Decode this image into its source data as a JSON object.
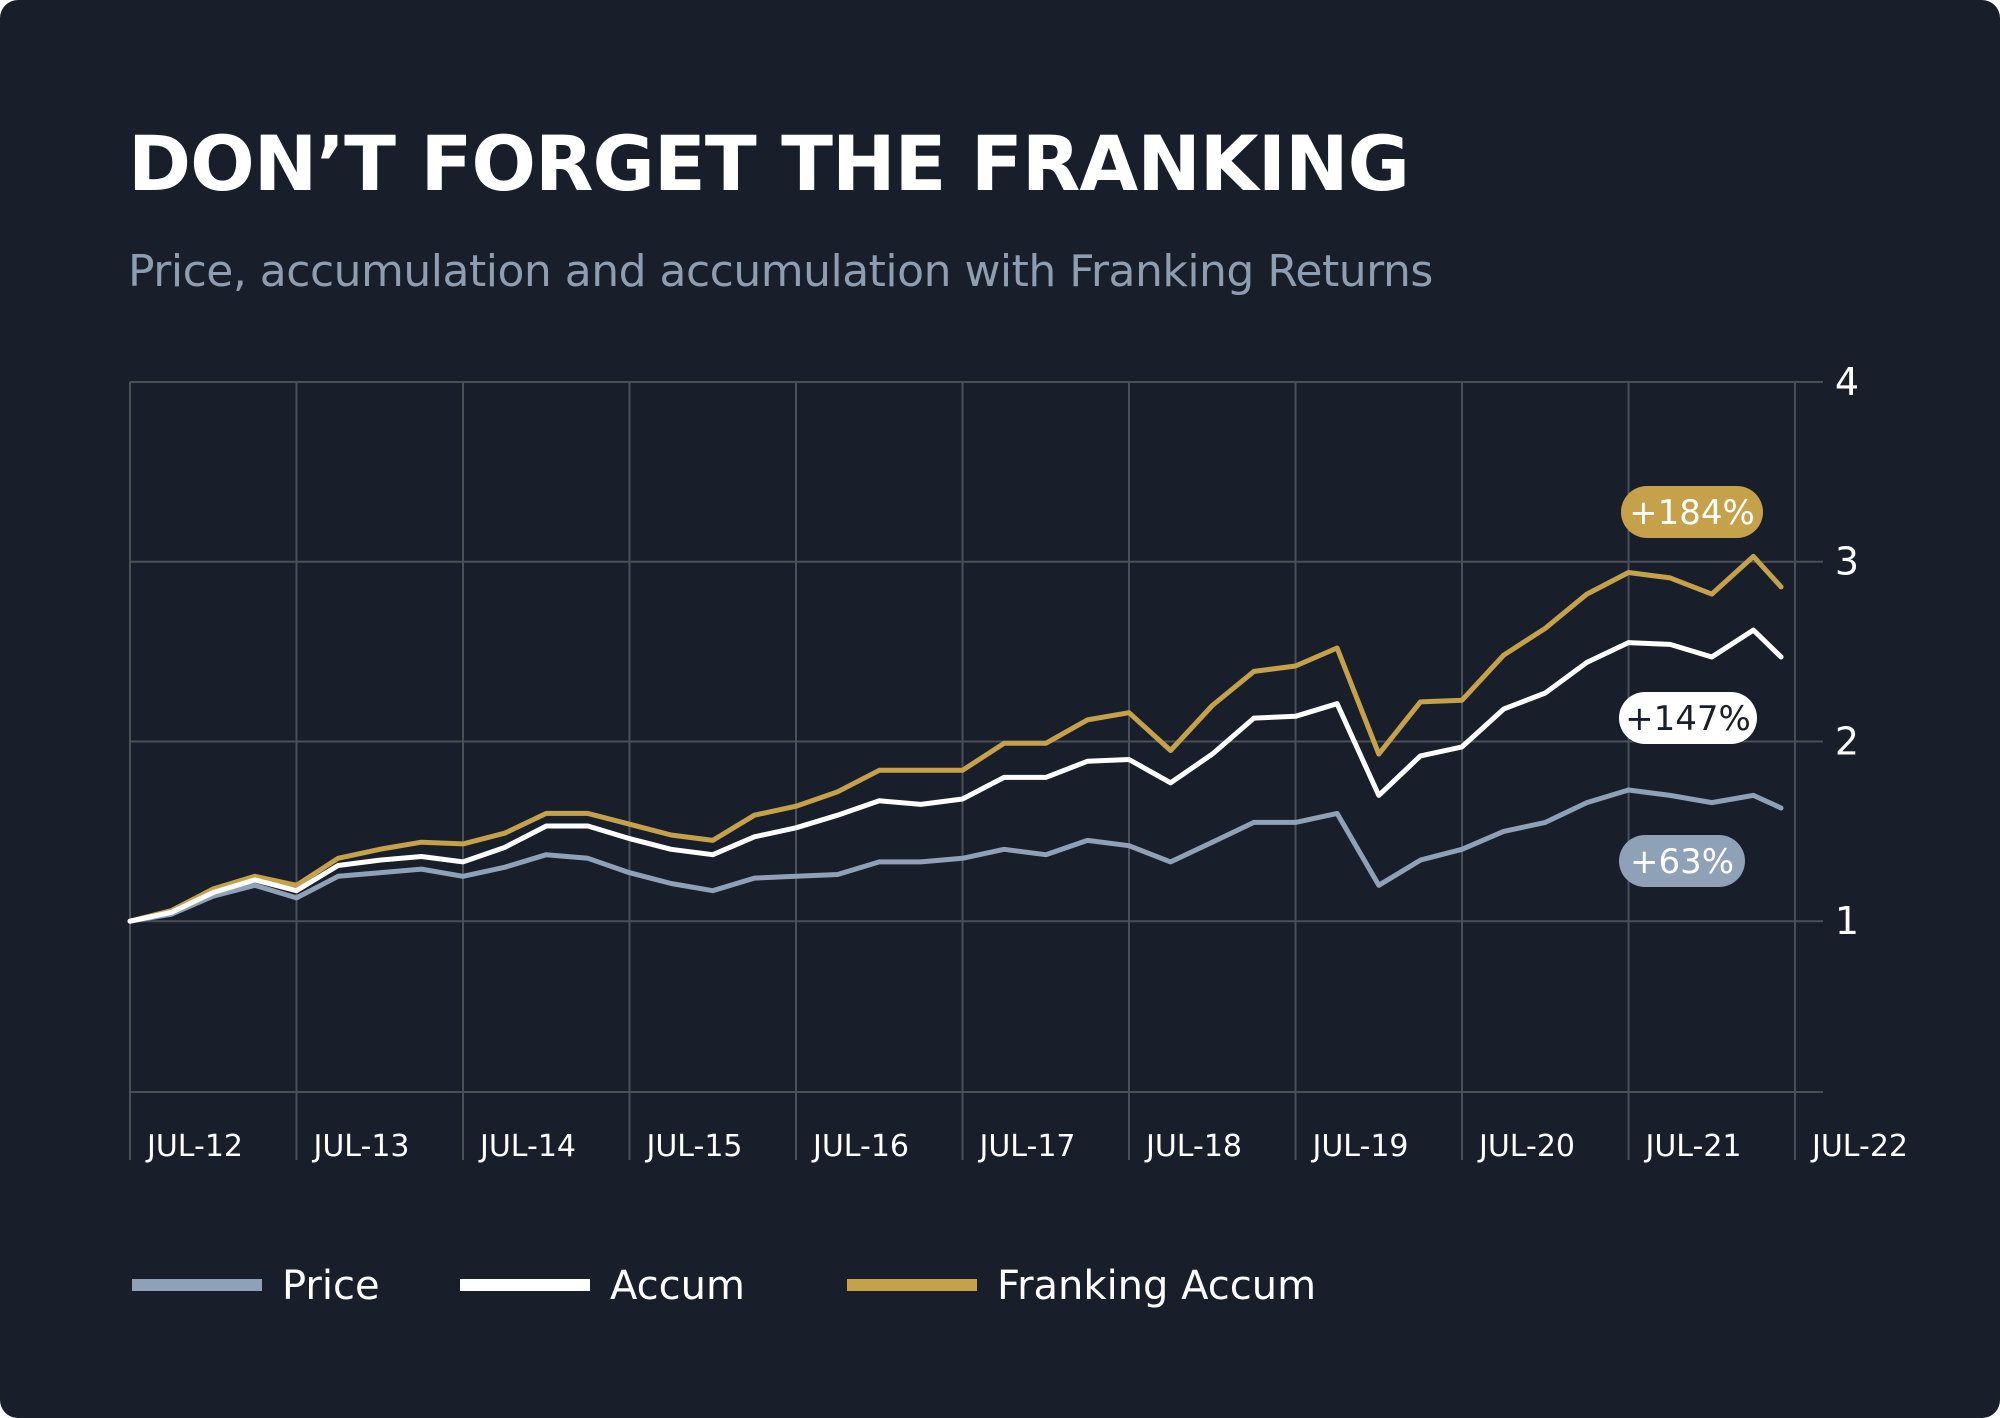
{
  "title": "DON’T FORGET THE FRANKING",
  "subtitle": "Price, accumulation and accumulation with Franking Returns",
  "colors": {
    "background": "#181f2b",
    "grid": "#4a4f58",
    "price": "#8fa1b6",
    "accum": "#ffffff",
    "franking": "#c5a14a"
  },
  "legend": [
    {
      "label": "Price",
      "color": "#8fa1b6"
    },
    {
      "label": "Accum",
      "color": "#ffffff"
    },
    {
      "label": "Franking Accum",
      "color": "#c5a14a"
    }
  ],
  "chart_data": {
    "type": "line",
    "title": "DON’T FORGET THE FRANKING",
    "subtitle": "Price, accumulation and accumulation with Franking Returns",
    "xlabel": "",
    "ylabel": "",
    "x_ticks": [
      "JUL-12",
      "JUL-13",
      "JUL-14",
      "JUL-15",
      "JUL-16",
      "JUL-17",
      "JUL-18",
      "JUL-19",
      "JUL-20",
      "JUL-21",
      "JUL-22"
    ],
    "y_ticks": [
      1,
      2,
      3,
      4
    ],
    "ylim": [
      0.05,
      4
    ],
    "xlim": [
      "2012-07",
      "2022-07"
    ],
    "y_axis_position": "right",
    "grid": true,
    "legend_position": "bottom",
    "x": [
      "2012-07",
      "2012-10",
      "2013-01",
      "2013-04",
      "2013-07",
      "2013-10",
      "2014-01",
      "2014-04",
      "2014-07",
      "2014-10",
      "2015-01",
      "2015-04",
      "2015-07",
      "2015-10",
      "2016-01",
      "2016-04",
      "2016-07",
      "2016-10",
      "2017-01",
      "2017-04",
      "2017-07",
      "2017-10",
      "2018-01",
      "2018-04",
      "2018-07",
      "2018-10",
      "2019-01",
      "2019-04",
      "2019-07",
      "2019-10",
      "2020-01",
      "2020-04",
      "2020-07",
      "2020-10",
      "2021-01",
      "2021-04",
      "2021-07",
      "2021-10",
      "2022-01",
      "2022-04",
      "2022-06"
    ],
    "series": [
      {
        "name": "Price",
        "color": "#8fa1b6",
        "end_label": "+63%",
        "values": [
          1.0,
          1.04,
          1.14,
          1.2,
          1.13,
          1.25,
          1.27,
          1.29,
          1.25,
          1.3,
          1.37,
          1.35,
          1.27,
          1.21,
          1.17,
          1.24,
          1.25,
          1.26,
          1.33,
          1.33,
          1.35,
          1.4,
          1.37,
          1.45,
          1.42,
          1.33,
          1.44,
          1.55,
          1.55,
          1.6,
          1.2,
          1.34,
          1.4,
          1.5,
          1.55,
          1.66,
          1.73,
          1.7,
          1.66,
          1.7,
          1.63
        ]
      },
      {
        "name": "Accum",
        "color": "#ffffff",
        "end_label": "+147%",
        "values": [
          1.0,
          1.05,
          1.16,
          1.23,
          1.17,
          1.31,
          1.34,
          1.36,
          1.33,
          1.41,
          1.53,
          1.53,
          1.46,
          1.4,
          1.37,
          1.47,
          1.52,
          1.59,
          1.67,
          1.65,
          1.68,
          1.8,
          1.8,
          1.89,
          1.9,
          1.77,
          1.93,
          2.13,
          2.14,
          2.21,
          1.7,
          1.92,
          1.97,
          2.18,
          2.27,
          2.44,
          2.55,
          2.54,
          2.47,
          2.62,
          2.47
        ]
      },
      {
        "name": "Franking Accum",
        "color": "#c5a14a",
        "end_label": "+184%",
        "values": [
          1.0,
          1.06,
          1.18,
          1.25,
          1.2,
          1.35,
          1.4,
          1.44,
          1.43,
          1.49,
          1.6,
          1.6,
          1.54,
          1.48,
          1.45,
          1.59,
          1.64,
          1.72,
          1.84,
          1.84,
          1.84,
          1.99,
          1.99,
          2.12,
          2.16,
          1.95,
          2.2,
          2.39,
          2.42,
          2.52,
          1.93,
          2.22,
          2.23,
          2.48,
          2.63,
          2.82,
          2.94,
          2.91,
          2.82,
          3.03,
          2.86
        ]
      }
    ]
  }
}
